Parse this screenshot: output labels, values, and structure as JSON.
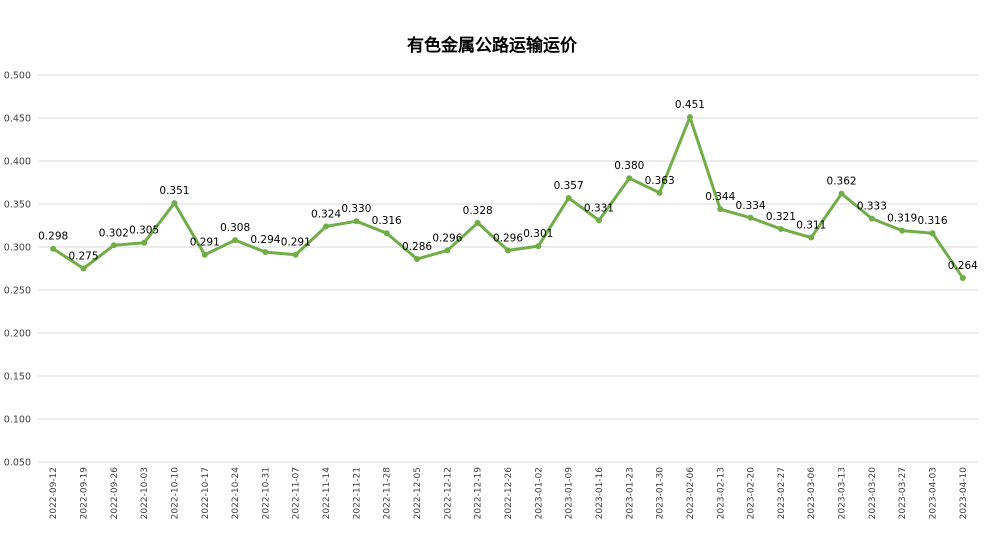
{
  "chart_data": {
    "type": "line",
    "title": "有色金属公路运输运价",
    "xlabel": "",
    "ylabel": "",
    "ylim": [
      0.05,
      0.5
    ],
    "ytick_step": 0.05,
    "ytick_labels": [
      "0.050",
      "0.100",
      "0.150",
      "0.200",
      "0.250",
      "0.300",
      "0.350",
      "0.400",
      "0.450",
      "0.500"
    ],
    "grid": true,
    "legend": "none",
    "line_color": "#70ad47",
    "categories": [
      "2022-09-12",
      "2022-09-19",
      "2022-09-26",
      "2022-10-03",
      "2022-10-10",
      "2022-10-17",
      "2022-10-24",
      "2022-10-31",
      "2022-11-07",
      "2022-11-14",
      "2022-11-21",
      "2022-11-28",
      "2022-12-05",
      "2022-12-12",
      "2022-12-19",
      "2022-12-26",
      "2023-01-02",
      "2023-01-09",
      "2023-01-16",
      "2023-01-23",
      "2023-01-30",
      "2023-02-06",
      "2023-02-13",
      "2023-02-20",
      "2023-02-27",
      "2023-03-06",
      "2023-03-13",
      "2023-03-20",
      "2023-03-27",
      "2023-04-03",
      "2023-04-10"
    ],
    "values": [
      0.298,
      0.275,
      0.302,
      0.305,
      0.351,
      0.291,
      0.308,
      0.294,
      0.291,
      0.324,
      0.33,
      0.316,
      0.286,
      0.296,
      0.328,
      0.296,
      0.301,
      0.357,
      0.331,
      0.38,
      0.363,
      0.451,
      0.344,
      0.334,
      0.321,
      0.311,
      0.362,
      0.333,
      0.319,
      0.316,
      0.264
    ],
    "data_labels": [
      "0.298",
      "0.275",
      "0.302",
      "0.305",
      "0.351",
      "0.291",
      "0.308",
      "0.294",
      "0.291",
      "0.324",
      "0.330",
      "0.316",
      "0.286",
      "0.296",
      "0.328",
      "0.296",
      "0.301",
      "0.357",
      "0.331",
      "0.380",
      "0.363",
      "0.451",
      "0.344",
      "0.334",
      "0.321",
      "0.311",
      "0.362",
      "0.333",
      "0.319",
      "0.316",
      "0.264"
    ]
  }
}
